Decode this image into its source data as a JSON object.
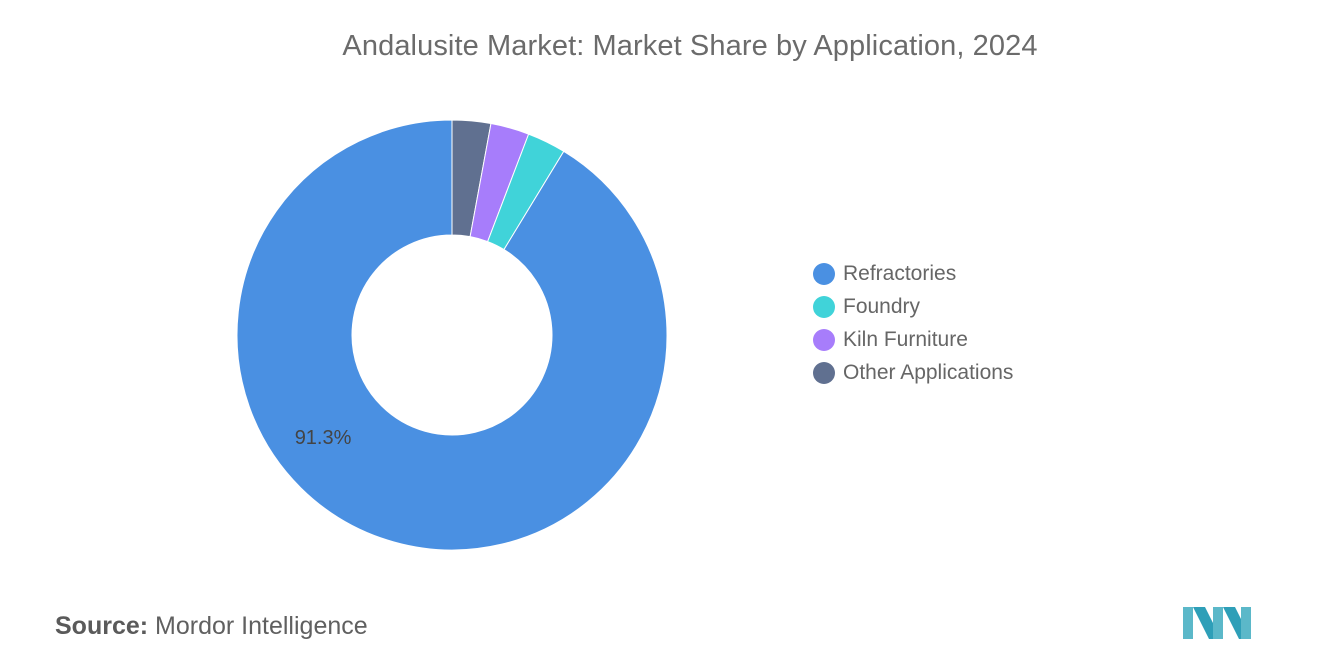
{
  "title": "Andalusite Market: Market Share by Application, 2024",
  "chart_data": {
    "type": "pie",
    "subtype": "donut",
    "title": "Andalusite Market: Market Share by Application, 2024",
    "series": [
      {
        "name": "Refractories",
        "value": 91.3,
        "color": "#4a90e2",
        "label": "91.3%"
      },
      {
        "name": "Foundry",
        "value": 2.9,
        "color": "#40d3d9"
      },
      {
        "name": "Kiln Furniture",
        "value": 2.9,
        "color": "#a77dfb"
      },
      {
        "name": "Other Applications",
        "value": 2.9,
        "color": "#607090"
      }
    ],
    "slice_order_clockwise_from_top": [
      "Other Applications",
      "Kiln Furniture",
      "Foundry",
      "Refractories"
    ],
    "legend_position": "right"
  },
  "source": {
    "label": "Source:",
    "text": "Mordor Intelligence"
  },
  "logo": {
    "icon": "mordor-intelligence-logo-icon",
    "color": "#5bb8c9"
  }
}
